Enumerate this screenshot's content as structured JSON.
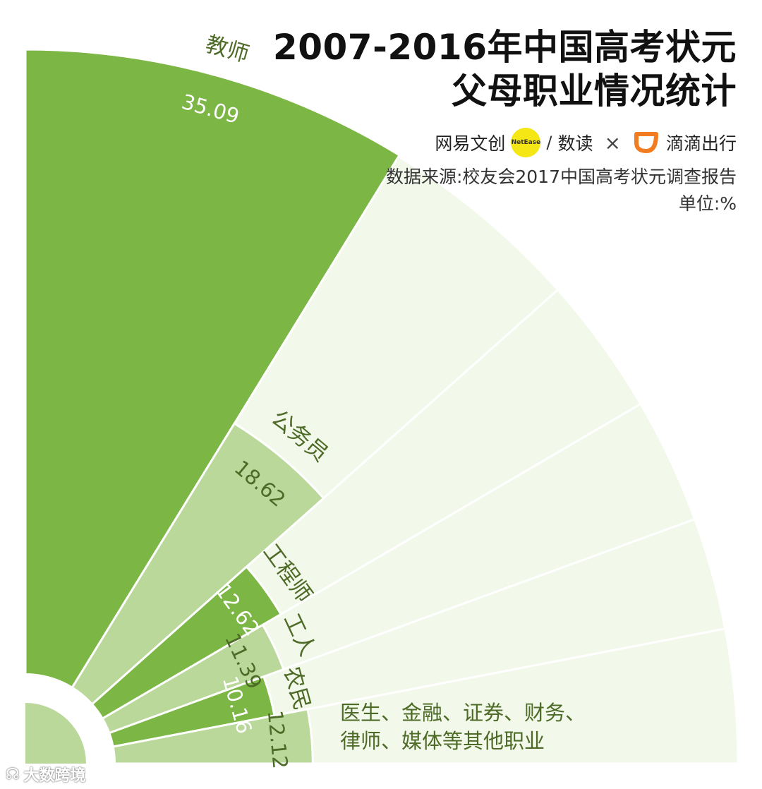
{
  "title_line1": "2007-2016年中国高考状元",
  "title_line2": "父母职业情况统计",
  "brands": {
    "netease_text": "网易文创",
    "netease_badge": "NetEase",
    "slash": "/",
    "shudu": "数读",
    "times": "×",
    "didi": "滴滴出行"
  },
  "source": "数据来源:校友会2017中国高考状元调查报告",
  "unit": "单位:%",
  "watermark": "大数跨境",
  "colors": {
    "dark_green": "#7cb644",
    "light_green": "#b9d89a",
    "pale_green": "#f2f8ea",
    "label_green": "#4d6b26",
    "netease_yellow": "#f5e615",
    "didi_orange": "#f47c20"
  },
  "chart_data": {
    "type": "pie",
    "subtype": "radial fan (quarter circle)",
    "unit": "%",
    "categories": [
      "教师",
      "公务员",
      "工程师",
      "工人",
      "农民",
      "医生、金融、证券、财务、律师、媒体等其他职业"
    ],
    "values": [
      35.09,
      18.62,
      12.62,
      11.39,
      10.16,
      12.12
    ],
    "value_labels": [
      "35.09",
      "18.62",
      "12.62",
      "11.39",
      "10.16",
      "12.12"
    ],
    "other_label_line1": "医生、金融、证券、财务、",
    "other_label_line2": "律师、媒体等其他职业"
  }
}
